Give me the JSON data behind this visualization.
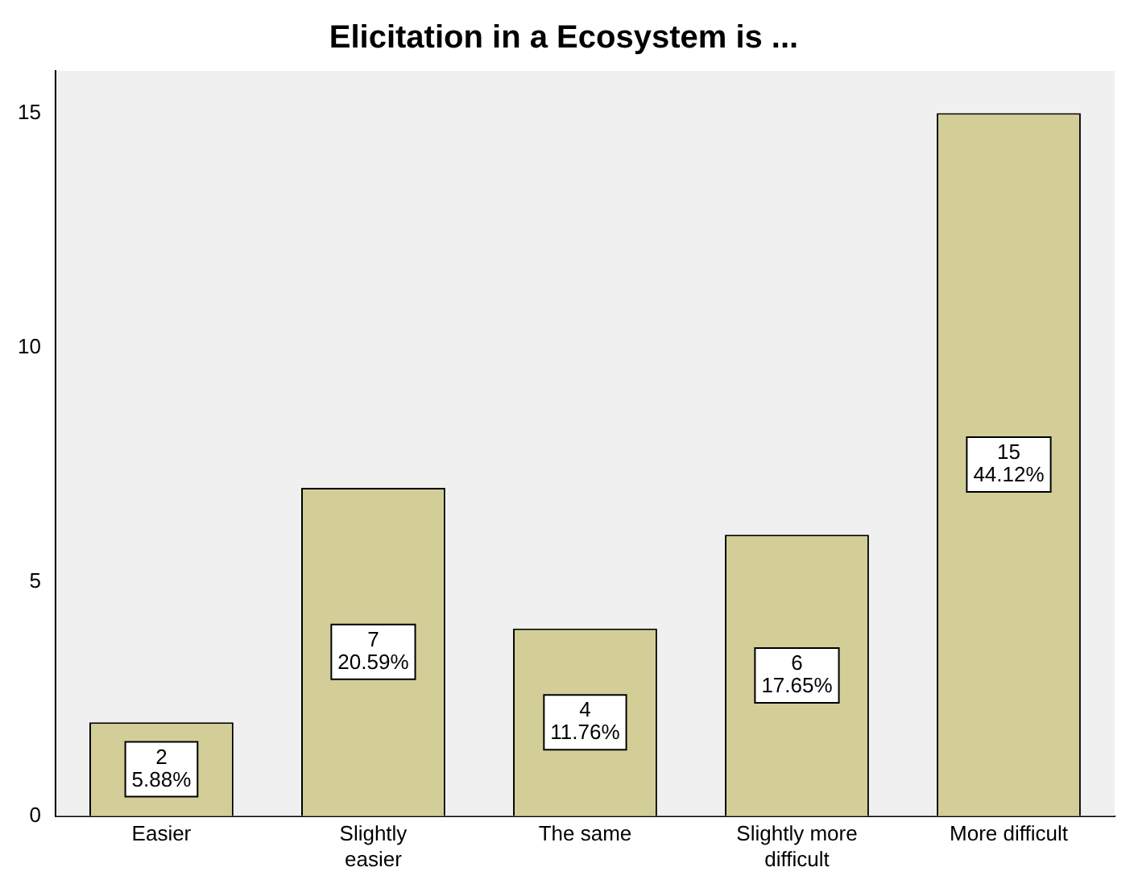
{
  "chart_data": {
    "type": "bar",
    "title": "Elicitation in a Ecosystem is ...",
    "categories": [
      "Easier",
      "Slightly easier",
      "The same",
      "Slightly more difficult",
      "More difficult"
    ],
    "values": [
      2,
      7,
      4,
      6,
      15
    ],
    "value_labels": [
      "2\n5.88%",
      "7\n20.59%",
      "4\n11.76%",
      "6\n17.65%",
      "15\n44.12%"
    ],
    "color": "#d3ce97",
    "ylim": [
      0,
      15.9
    ],
    "yticks": [
      0,
      5,
      10,
      15
    ],
    "grid": false,
    "legend": false
  }
}
